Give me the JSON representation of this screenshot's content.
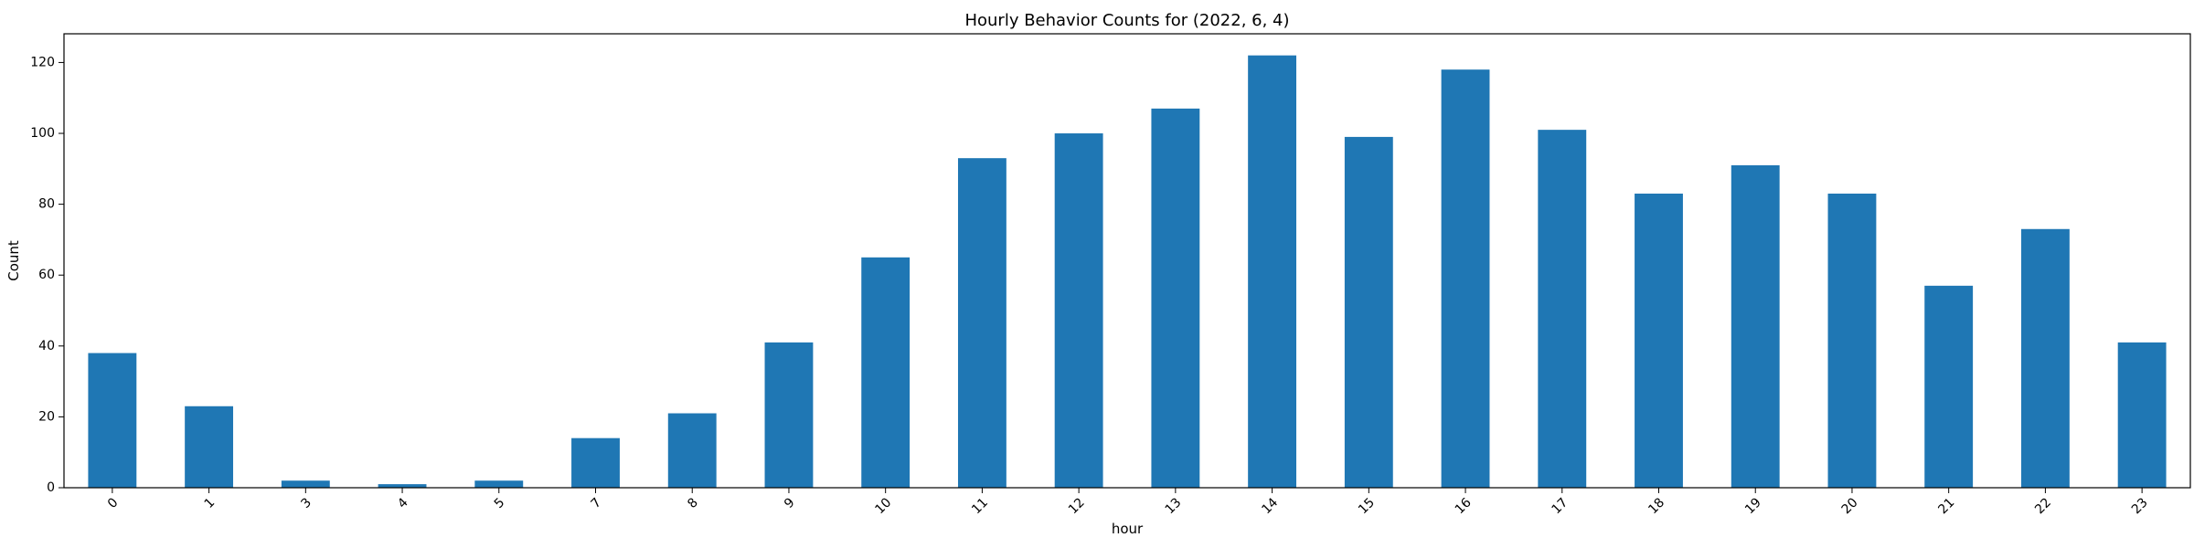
{
  "chart_data": {
    "type": "bar",
    "title": "Hourly Behavior Counts for (2022, 6, 4)",
    "xlabel": "hour",
    "ylabel": "Count",
    "categories": [
      "0",
      "1",
      "3",
      "4",
      "5",
      "7",
      "8",
      "9",
      "10",
      "11",
      "12",
      "13",
      "14",
      "15",
      "16",
      "17",
      "18",
      "19",
      "20",
      "21",
      "22",
      "23"
    ],
    "values": [
      38,
      23,
      2,
      1,
      2,
      14,
      21,
      41,
      65,
      93,
      100,
      107,
      122,
      99,
      118,
      101,
      83,
      91,
      83,
      57,
      73,
      41
    ],
    "ylim": [
      0,
      128.1
    ],
    "yticks": [
      0,
      20,
      40,
      60,
      80,
      100,
      120
    ],
    "grid": false,
    "bar_color": "#1f77b4",
    "xtick_rotation": 45
  }
}
